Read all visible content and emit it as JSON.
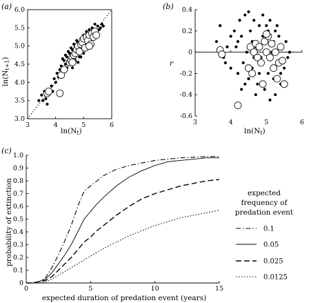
{
  "colors": {
    "ink": "#000000",
    "paper": "#ffffff"
  },
  "chart_data": [
    {
      "panel": "(a)",
      "type": "scatter",
      "xlabel": "ln(N_t)",
      "ylabel": "ln(N_t+1)",
      "xlim": [
        3,
        6
      ],
      "ylim": [
        3.0,
        6.0
      ],
      "xticks": [
        "3",
        "4",
        "5",
        "6"
      ],
      "yticks": [
        "3.0",
        "3.5",
        "4.0",
        "4.5",
        "5.0",
        "5.5",
        "6.0"
      ],
      "reference_line": "y = x (dotted)",
      "series": [
        {
          "marker": "filled-small",
          "points": [
            [
              3.4,
              3.5
            ],
            [
              3.5,
              3.65
            ],
            [
              3.55,
              3.5
            ],
            [
              3.6,
              3.75
            ],
            [
              3.65,
              3.55
            ],
            [
              3.7,
              3.4
            ],
            [
              3.75,
              3.8
            ],
            [
              3.8,
              3.7
            ],
            [
              3.85,
              3.9
            ],
            [
              3.9,
              3.75
            ],
            [
              3.95,
              4.1
            ],
            [
              4.0,
              4.0
            ],
            [
              4.05,
              4.25
            ],
            [
              4.1,
              4.15
            ],
            [
              4.15,
              4.35
            ],
            [
              4.2,
              4.45
            ],
            [
              4.25,
              4.3
            ],
            [
              4.3,
              4.6
            ],
            [
              4.35,
              4.5
            ],
            [
              4.4,
              4.7
            ],
            [
              4.45,
              4.55
            ],
            [
              4.5,
              4.8
            ],
            [
              4.55,
              4.65
            ],
            [
              4.6,
              4.9
            ],
            [
              4.65,
              4.75
            ],
            [
              4.7,
              5.0
            ],
            [
              4.75,
              4.85
            ],
            [
              4.8,
              5.1
            ],
            [
              4.85,
              4.7
            ],
            [
              4.9,
              5.2
            ],
            [
              4.95,
              4.9
            ],
            [
              5.0,
              5.3
            ],
            [
              5.05,
              5.0
            ],
            [
              5.1,
              5.4
            ],
            [
              5.15,
              5.1
            ],
            [
              5.2,
              5.45
            ],
            [
              5.25,
              5.2
            ],
            [
              5.3,
              5.5
            ],
            [
              5.35,
              5.3
            ],
            [
              5.4,
              5.6
            ],
            [
              5.45,
              5.35
            ],
            [
              5.5,
              5.55
            ],
            [
              5.55,
              5.45
            ],
            [
              5.6,
              5.5
            ],
            [
              5.65,
              5.6
            ],
            [
              5.7,
              5.55
            ],
            [
              4.5,
              4.5
            ],
            [
              4.6,
              4.4
            ],
            [
              4.7,
              4.6
            ],
            [
              4.8,
              4.55
            ],
            [
              4.9,
              4.7
            ],
            [
              5.0,
              4.8
            ],
            [
              4.4,
              4.4
            ],
            [
              4.3,
              4.3
            ],
            [
              4.2,
              4.2
            ],
            [
              4.55,
              4.95
            ],
            [
              4.65,
              5.05
            ],
            [
              4.75,
              5.15
            ],
            [
              5.05,
              5.25
            ],
            [
              5.15,
              5.3
            ],
            [
              4.35,
              4.75
            ],
            [
              4.45,
              4.85
            ],
            [
              4.25,
              4.65
            ]
          ]
        },
        {
          "marker": "open-large",
          "points": [
            [
              3.7,
              3.7
            ],
            [
              3.75,
              3.75
            ],
            [
              4.15,
              3.7
            ],
            [
              4.2,
              4.2
            ],
            [
              4.3,
              4.35
            ],
            [
              4.5,
              4.55
            ],
            [
              4.55,
              4.6
            ],
            [
              4.6,
              4.7
            ],
            [
              4.65,
              4.75
            ],
            [
              4.7,
              4.8
            ],
            [
              4.75,
              4.9
            ],
            [
              4.8,
              5.0
            ],
            [
              4.85,
              4.85
            ],
            [
              4.9,
              5.05
            ],
            [
              4.95,
              5.1
            ],
            [
              5.0,
              5.2
            ],
            [
              5.05,
              4.95
            ],
            [
              5.1,
              5.25
            ],
            [
              5.15,
              5.15
            ],
            [
              5.2,
              5.3
            ],
            [
              5.25,
              5.05
            ],
            [
              5.3,
              5.35
            ],
            [
              5.35,
              5.25
            ],
            [
              5.4,
              5.4
            ],
            [
              5.45,
              5.3
            ],
            [
              5.2,
              5.0
            ],
            [
              4.6,
              4.55
            ]
          ]
        }
      ]
    },
    {
      "panel": "(b)",
      "type": "scatter",
      "xlabel": "ln(N_t)",
      "ylabel": "r",
      "xlim": [
        3,
        6
      ],
      "ylim": [
        -0.6,
        0.4
      ],
      "xticks": [
        "3",
        "4",
        "5",
        "6"
      ],
      "yticks": [
        "0.4",
        "0.2",
        "0",
        "-0.2",
        "-0.4",
        "-0.6"
      ],
      "reference_line": "r = 0",
      "series": [
        {
          "marker": "filled-small",
          "points": [
            [
              3.6,
              0.1
            ],
            [
              3.7,
              0.25
            ],
            [
              3.8,
              -0.05
            ],
            [
              3.9,
              0.05
            ],
            [
              4.0,
              -0.15
            ],
            [
              4.1,
              0.2
            ],
            [
              4.15,
              0.05
            ],
            [
              4.2,
              -0.2
            ],
            [
              4.25,
              0.3
            ],
            [
              4.3,
              0.15
            ],
            [
              4.35,
              -0.1
            ],
            [
              4.4,
              0.35
            ],
            [
              4.45,
              0.0
            ],
            [
              4.5,
              -0.25
            ],
            [
              4.55,
              0.2
            ],
            [
              4.6,
              -0.15
            ],
            [
              4.65,
              0.3
            ],
            [
              4.7,
              0.05
            ],
            [
              4.75,
              -0.3
            ],
            [
              4.8,
              0.25
            ],
            [
              4.85,
              -0.05
            ],
            [
              4.9,
              0.15
            ],
            [
              4.95,
              -0.35
            ],
            [
              5.0,
              0.1
            ],
            [
              5.05,
              -0.2
            ],
            [
              5.1,
              0.3
            ],
            [
              5.15,
              0.0
            ],
            [
              5.2,
              -0.25
            ],
            [
              5.25,
              0.2
            ],
            [
              5.3,
              -0.1
            ],
            [
              5.35,
              0.15
            ],
            [
              5.4,
              -0.3
            ],
            [
              5.45,
              0.05
            ],
            [
              5.5,
              -0.15
            ],
            [
              5.55,
              0.1
            ],
            [
              5.6,
              -0.05
            ],
            [
              5.65,
              0.0
            ],
            [
              4.3,
              -0.35
            ],
            [
              4.5,
              0.38
            ],
            [
              4.7,
              -0.4
            ],
            [
              4.9,
              0.35
            ],
            [
              5.1,
              -0.45
            ],
            [
              5.25,
              -0.4
            ],
            [
              4.4,
              -0.3
            ],
            [
              4.6,
              0.1
            ],
            [
              4.8,
              -0.2
            ],
            [
              5.0,
              0.25
            ],
            [
              5.2,
              0.1
            ],
            [
              5.4,
              -0.2
            ],
            [
              4.2,
              0.1
            ],
            [
              4.0,
              0.15
            ],
            [
              3.85,
              -0.1
            ],
            [
              4.65,
              -0.05
            ],
            [
              4.85,
              0.05
            ],
            [
              5.05,
              0.2
            ],
            [
              5.3,
              0.25
            ]
          ]
        },
        {
          "marker": "open-large",
          "points": [
            [
              3.7,
              0.02
            ],
            [
              3.75,
              -0.02
            ],
            [
              4.2,
              -0.5
            ],
            [
              4.5,
              -0.15
            ],
            [
              4.55,
              0.05
            ],
            [
              4.6,
              -0.2
            ],
            [
              4.65,
              0.0
            ],
            [
              4.7,
              0.08
            ],
            [
              4.75,
              -0.05
            ],
            [
              4.8,
              0.05
            ],
            [
              4.85,
              -0.1
            ],
            [
              4.9,
              -0.3
            ],
            [
              4.95,
              0.1
            ],
            [
              5.0,
              0.0
            ],
            [
              5.05,
              0.15
            ],
            [
              5.1,
              -0.05
            ],
            [
              5.15,
              0.08
            ],
            [
              5.2,
              -0.15
            ],
            [
              5.25,
              0.0
            ],
            [
              5.3,
              -0.25
            ],
            [
              5.35,
              -0.1
            ],
            [
              5.4,
              0.05
            ],
            [
              5.45,
              -0.08
            ],
            [
              5.5,
              -0.3
            ],
            [
              5.0,
              0.17
            ]
          ]
        }
      ]
    },
    {
      "panel": "(c)",
      "type": "line",
      "xlabel": "expected duration of predation event (years)",
      "ylabel": "probability of extinction",
      "xlim": [
        0,
        15
      ],
      "ylim": [
        0,
        1.0
      ],
      "xticks": [
        "0",
        "5",
        "10",
        "15"
      ],
      "yticks": [
        "0",
        "0.1",
        "0.2",
        "0.3",
        "0.4",
        "0.5",
        "0.6",
        "0.7",
        "0.8",
        "0.9",
        "1.0"
      ],
      "legend_title": "expected frequency of predation event",
      "legend_placement": "right",
      "x": [
        0,
        0.5,
        1,
        1.5,
        2,
        2.5,
        3,
        3.5,
        4,
        4.5,
        5,
        5.5,
        6,
        7,
        8,
        9,
        10,
        11,
        12,
        13,
        14,
        15
      ],
      "series": [
        {
          "name": "0.1",
          "dash": "dash-dot",
          "values": [
            0,
            0,
            0.01,
            0.04,
            0.12,
            0.22,
            0.33,
            0.45,
            0.6,
            0.72,
            0.76,
            0.8,
            0.84,
            0.89,
            0.92,
            0.94,
            0.96,
            0.97,
            0.98,
            0.985,
            0.99,
            0.99
          ]
        },
        {
          "name": "0.05",
          "dash": "solid",
          "values": [
            0,
            0,
            0.01,
            0.03,
            0.08,
            0.15,
            0.22,
            0.3,
            0.4,
            0.5,
            0.56,
            0.62,
            0.67,
            0.76,
            0.83,
            0.88,
            0.92,
            0.95,
            0.96,
            0.97,
            0.98,
            0.98
          ]
        },
        {
          "name": "0.025",
          "dash": "long-dash",
          "values": [
            0,
            0,
            0.01,
            0.02,
            0.05,
            0.1,
            0.15,
            0.2,
            0.26,
            0.32,
            0.36,
            0.41,
            0.45,
            0.53,
            0.6,
            0.66,
            0.7,
            0.73,
            0.76,
            0.78,
            0.8,
            0.81
          ]
        },
        {
          "name": "0.0125",
          "dash": "dotted",
          "values": [
            0,
            0,
            0.0,
            0.01,
            0.03,
            0.06,
            0.09,
            0.12,
            0.15,
            0.18,
            0.21,
            0.24,
            0.27,
            0.32,
            0.37,
            0.41,
            0.45,
            0.48,
            0.51,
            0.53,
            0.55,
            0.57
          ]
        }
      ]
    }
  ],
  "labels": {
    "panel_a": "(a)",
    "panel_b": "(b)",
    "panel_c": "(c)",
    "a_xlabel_main": "ln(N",
    "a_xlabel_sub": "t",
    "a_xlabel_close": ")",
    "a_ylabel_main": "ln(N",
    "a_ylabel_sub": "t+1",
    "a_ylabel_close": ")",
    "b_xlabel_main": "ln(N",
    "b_xlabel_sub": "t",
    "b_xlabel_close": ")",
    "b_ylabel": "r",
    "c_xlabel": "expected duration of predation event (years)",
    "c_ylabel": "probability of extinction",
    "legend_title_1": "expected",
    "legend_title_2": "frequency of",
    "legend_title_3": "predation event"
  }
}
